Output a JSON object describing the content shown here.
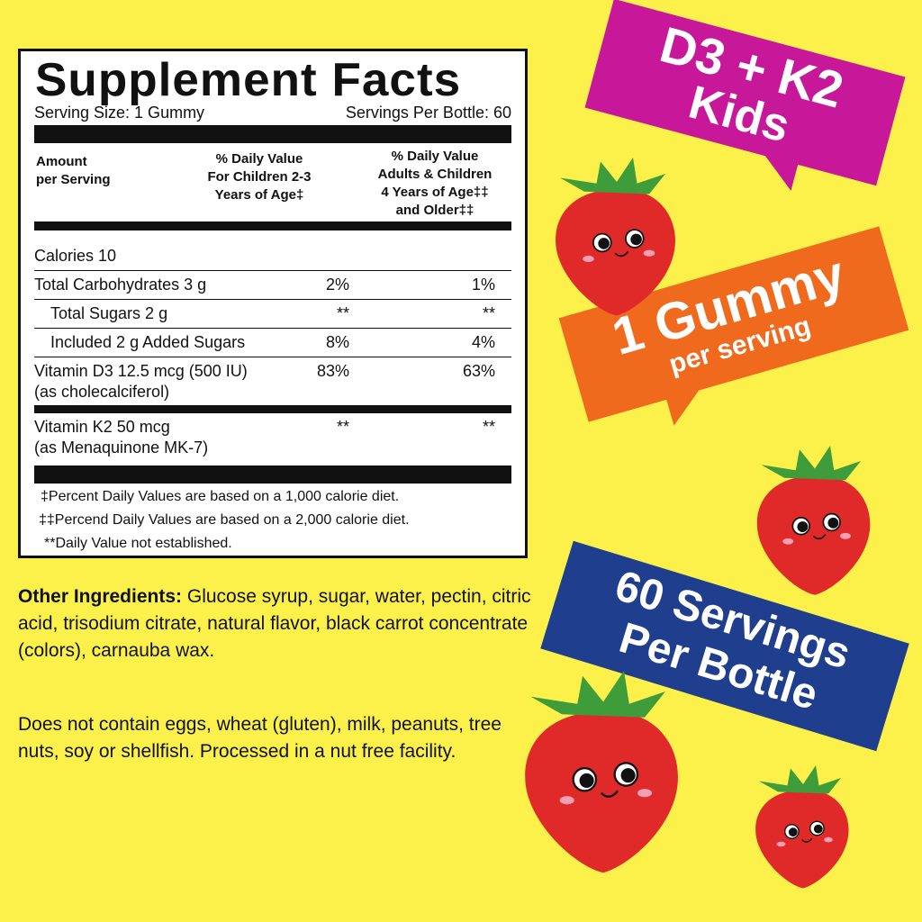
{
  "facts": {
    "title": "Supplement Facts",
    "serving_size": "Serving Size: 1 Gummy",
    "servings_per": "Servings Per Bottle: 60",
    "headers": [
      "Amount\nper Serving",
      "% Daily Value\nFor Children 2-3\nYears of Age‡",
      "% Daily Value\nAdults & Children\n4 Years of Age‡‡\nand Older‡‡"
    ],
    "rows": [
      {
        "label": "Calories 10",
        "dv1": "",
        "dv2": ""
      },
      {
        "label": "Total Carbohydrates 3 g",
        "dv1": "2%",
        "dv2": "1%"
      },
      {
        "label": "Total Sugars 2 g",
        "dv1": "**",
        "dv2": "**"
      },
      {
        "label": "Included 2 g Added Sugars",
        "dv1": "8%",
        "dv2": "4%"
      },
      {
        "label": "Vitamin D3 12.5 mcg (500 IU)",
        "sub": "(as cholecalciferol)",
        "dv1": "83%",
        "dv2": "63%"
      },
      {
        "label": "Vitamin K2 50 mcg",
        "sub": "(as Menaquinone MK-7)",
        "dv1": "**",
        "dv2": "**"
      }
    ],
    "footnotes": [
      "‡Percent Daily Values are based on a 1,000 calorie diet.",
      "‡‡Percend Daily Values are based on a 2,000 calorie diet.",
      "**Daily Value not established."
    ]
  },
  "ingredients": {
    "label": "Other Ingredients:",
    "text": " Glucose syrup, sugar, water, pectin, citric acid, trisodium citrate, natural flavor, black carrot concentrate (colors), carnauba wax.",
    "allergens": "Does not contain eggs, wheat (gluten), milk, peanuts, tree nuts, soy or shellfish. Processed in a nut free facility."
  },
  "banners": {
    "kids": {
      "line1": "D3 + K2",
      "line2": "Kids",
      "color": "#c8189a"
    },
    "gummy": {
      "line1": "1 Gummy",
      "line2": "per serving",
      "color": "#f06a1e"
    },
    "servings": {
      "line1": "60 Servings",
      "line2": "Per Bottle",
      "color": "#1f3f8e"
    }
  },
  "colors": {
    "background": "#fcf04a",
    "strawberry": "#e02a2a",
    "leaf": "#3e9c3a"
  }
}
